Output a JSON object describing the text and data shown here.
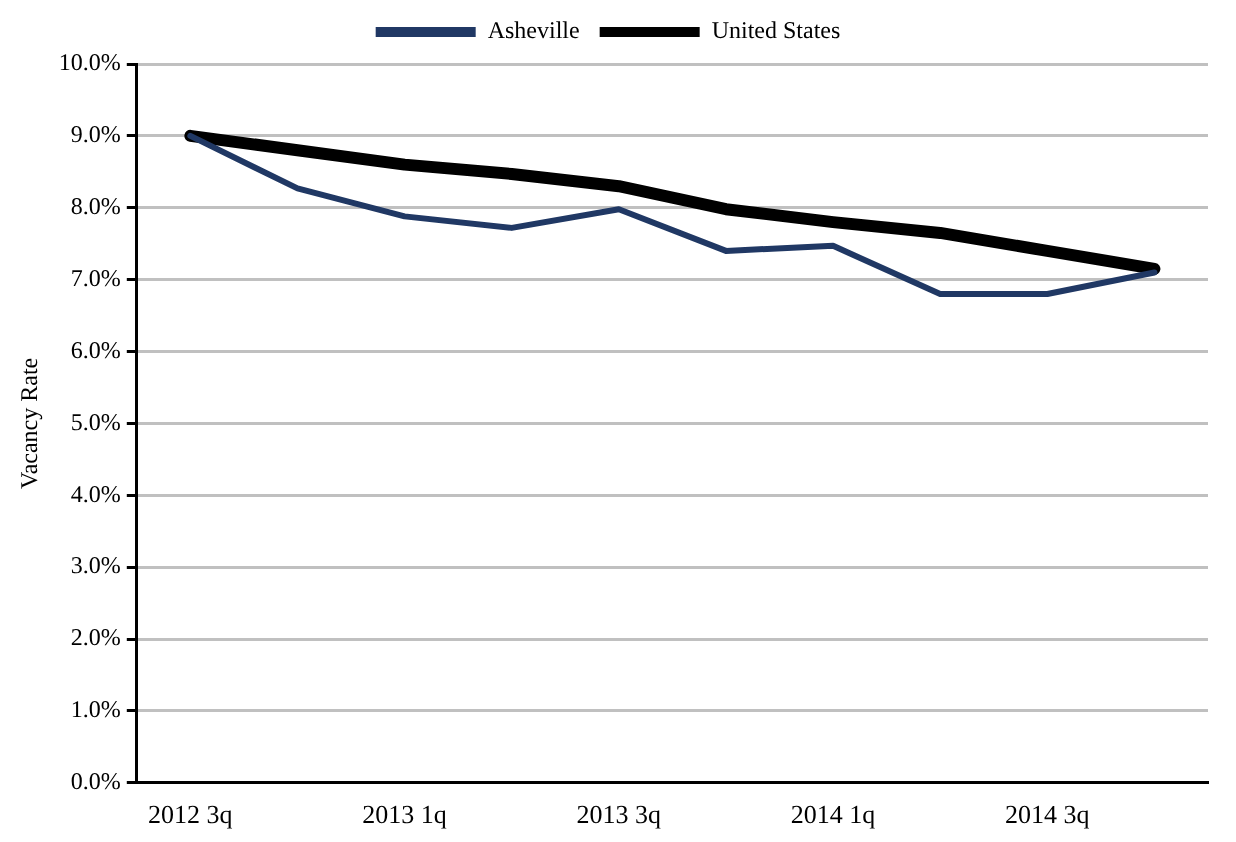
{
  "chart_data": {
    "type": "line",
    "ylabel": "Vacancy Rate",
    "categories": [
      "2012 3q",
      null,
      "2013 1q",
      null,
      "2013 3q",
      null,
      "2014 1q",
      null,
      "2014 3q",
      null
    ],
    "series": [
      {
        "name": "Asheville",
        "color": "#203864",
        "values": [
          9.0,
          8.27,
          7.88,
          7.72,
          7.98,
          7.4,
          7.47,
          6.8,
          6.8,
          7.1
        ]
      },
      {
        "name": "United States",
        "color": "#000000",
        "values": [
          9.0,
          8.8,
          8.6,
          8.47,
          8.3,
          7.98,
          7.8,
          7.65,
          7.4,
          7.15
        ]
      }
    ],
    "ylim": [
      0,
      10
    ],
    "yticks": [
      {
        "value": 0,
        "label": "0.0%"
      },
      {
        "value": 1,
        "label": "1.0%"
      },
      {
        "value": 2,
        "label": "2.0%"
      },
      {
        "value": 3,
        "label": "3.0%"
      },
      {
        "value": 4,
        "label": "4.0%"
      },
      {
        "value": 5,
        "label": "5.0%"
      },
      {
        "value": 6,
        "label": "6.0%"
      },
      {
        "value": 7,
        "label": "7.0%"
      },
      {
        "value": 8,
        "label": "8.0%"
      },
      {
        "value": 9,
        "label": "9.0%"
      },
      {
        "value": 10,
        "label": "10.0%"
      }
    ],
    "grid": "y",
    "legend": "top",
    "marker": "none"
  }
}
